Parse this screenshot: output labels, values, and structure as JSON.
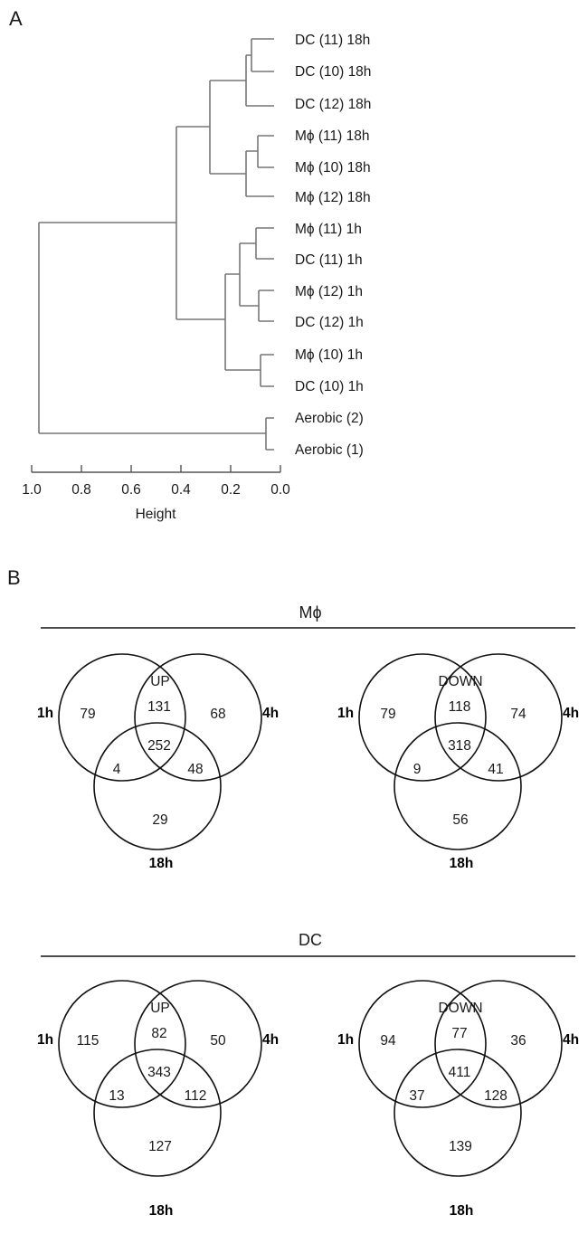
{
  "panel_a": {
    "letter": "A",
    "leaves": [
      "DC (11) 18h",
      "DC (10) 18h",
      "DC (12) 18h",
      "Mϕ (11) 18h",
      "Mϕ (10) 18h",
      "Mϕ (12) 18h",
      "Mϕ (11) 1h",
      "DC (11) 1h",
      "Mϕ (12) 1h",
      "DC (12) 1h",
      "Mϕ (10) 1h",
      "DC (10) 1h",
      "Aerobic (2)",
      "Aerobic (1)"
    ],
    "axis_ticks": [
      "1.0",
      "0.8",
      "0.6",
      "0.4",
      "0.2",
      "0.0"
    ],
    "axis_title": "Height"
  },
  "panel_b": {
    "letter": "B",
    "sections": [
      {
        "title": "Mϕ",
        "venns": [
          {
            "direction": "UP",
            "sets": [
              "1h",
              "4h",
              "18h"
            ],
            "counts": {
              "only_1h": "79",
              "only_4h": "68",
              "only_18h": "29",
              "1h_4h": "131",
              "1h_18h": "4",
              "4h_18h": "48",
              "all": "252"
            }
          },
          {
            "direction": "DOWN",
            "sets": [
              "1h",
              "4h",
              "18h"
            ],
            "counts": {
              "only_1h": "79",
              "only_4h": "74",
              "only_18h": "56",
              "1h_4h": "118",
              "1h_18h": "9",
              "4h_18h": "41",
              "all": "318"
            }
          }
        ]
      },
      {
        "title": "DC",
        "venns": [
          {
            "direction": "UP",
            "sets": [
              "1h",
              "4h",
              "18h"
            ],
            "counts": {
              "only_1h": "115",
              "only_4h": "50",
              "only_18h": "127",
              "1h_4h": "82",
              "1h_18h": "13",
              "4h_18h": "112",
              "all": "343"
            }
          },
          {
            "direction": "DOWN",
            "sets": [
              "1h",
              "4h",
              "18h"
            ],
            "counts": {
              "only_1h": "94",
              "only_4h": "36",
              "only_18h": "139",
              "1h_4h": "77",
              "1h_18h": "37",
              "4h_18h": "128",
              "all": "411"
            }
          }
        ]
      }
    ]
  }
}
